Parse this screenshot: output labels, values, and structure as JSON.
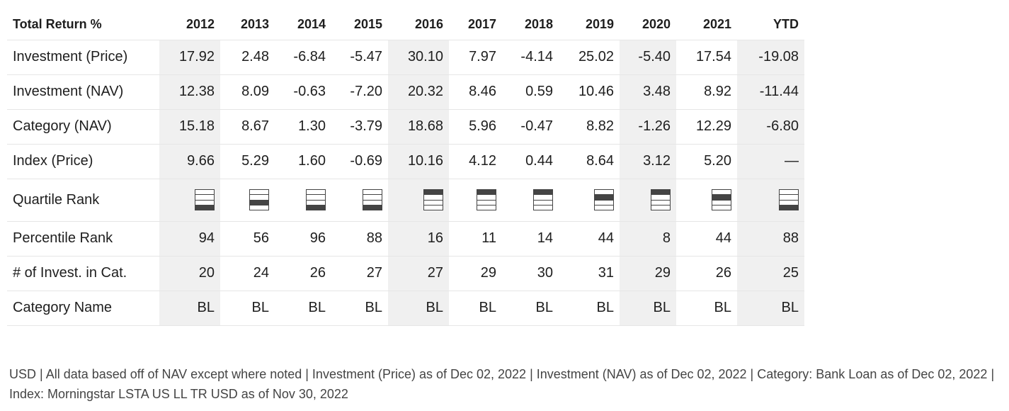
{
  "table": {
    "corner_label": "Total Return %",
    "columns": [
      "2012",
      "2013",
      "2014",
      "2015",
      "2016",
      "2017",
      "2018",
      "2019",
      "2020",
      "2021",
      "YTD"
    ],
    "rows": [
      {
        "label": "Investment (Price)",
        "values": [
          "17.92",
          "2.48",
          "-6.84",
          "-5.47",
          "30.10",
          "7.97",
          "-4.14",
          "25.02",
          "-5.40",
          "17.54",
          "-19.08"
        ]
      },
      {
        "label": "Investment (NAV)",
        "values": [
          "12.38",
          "8.09",
          "-0.63",
          "-7.20",
          "20.32",
          "8.46",
          "0.59",
          "10.46",
          "3.48",
          "8.92",
          "-11.44"
        ]
      },
      {
        "label": "Category (NAV)",
        "values": [
          "15.18",
          "8.67",
          "1.30",
          "-3.79",
          "18.68",
          "5.96",
          "-0.47",
          "8.82",
          "-1.26",
          "12.29",
          "-6.80"
        ]
      },
      {
        "label": "Index (Price)",
        "values": [
          "9.66",
          "5.29",
          "1.60",
          "-0.69",
          "10.16",
          "4.12",
          "0.44",
          "8.64",
          "3.12",
          "5.20",
          "—"
        ]
      }
    ],
    "quartile_row": {
      "label": "Quartile Rank",
      "quartiles": [
        4,
        3,
        4,
        4,
        1,
        1,
        1,
        2,
        1,
        2,
        4
      ]
    },
    "rows_after": [
      {
        "label": "Percentile Rank",
        "values": [
          "94",
          "56",
          "96",
          "88",
          "16",
          "11",
          "14",
          "44",
          "8",
          "44",
          "88"
        ]
      },
      {
        "label": "# of Invest. in Cat.",
        "values": [
          "20",
          "24",
          "26",
          "27",
          "27",
          "29",
          "30",
          "31",
          "29",
          "26",
          "25"
        ]
      },
      {
        "label": "Category Name",
        "values": [
          "BL",
          "BL",
          "BL",
          "BL",
          "BL",
          "BL",
          "BL",
          "BL",
          "BL",
          "BL",
          "BL"
        ]
      }
    ]
  },
  "footnote": "USD | All data based off of NAV except where noted  | Investment (Price) as of Dec 02, 2022  | Investment (NAV) as of Dec 02, 2022  | Category: Bank Loan as of Dec 02, 2022  | Index: Morningstar LSTA US LL TR USD as of Nov 30, 2022",
  "icons": {
    "quartile": "quartile-rank-icon"
  }
}
